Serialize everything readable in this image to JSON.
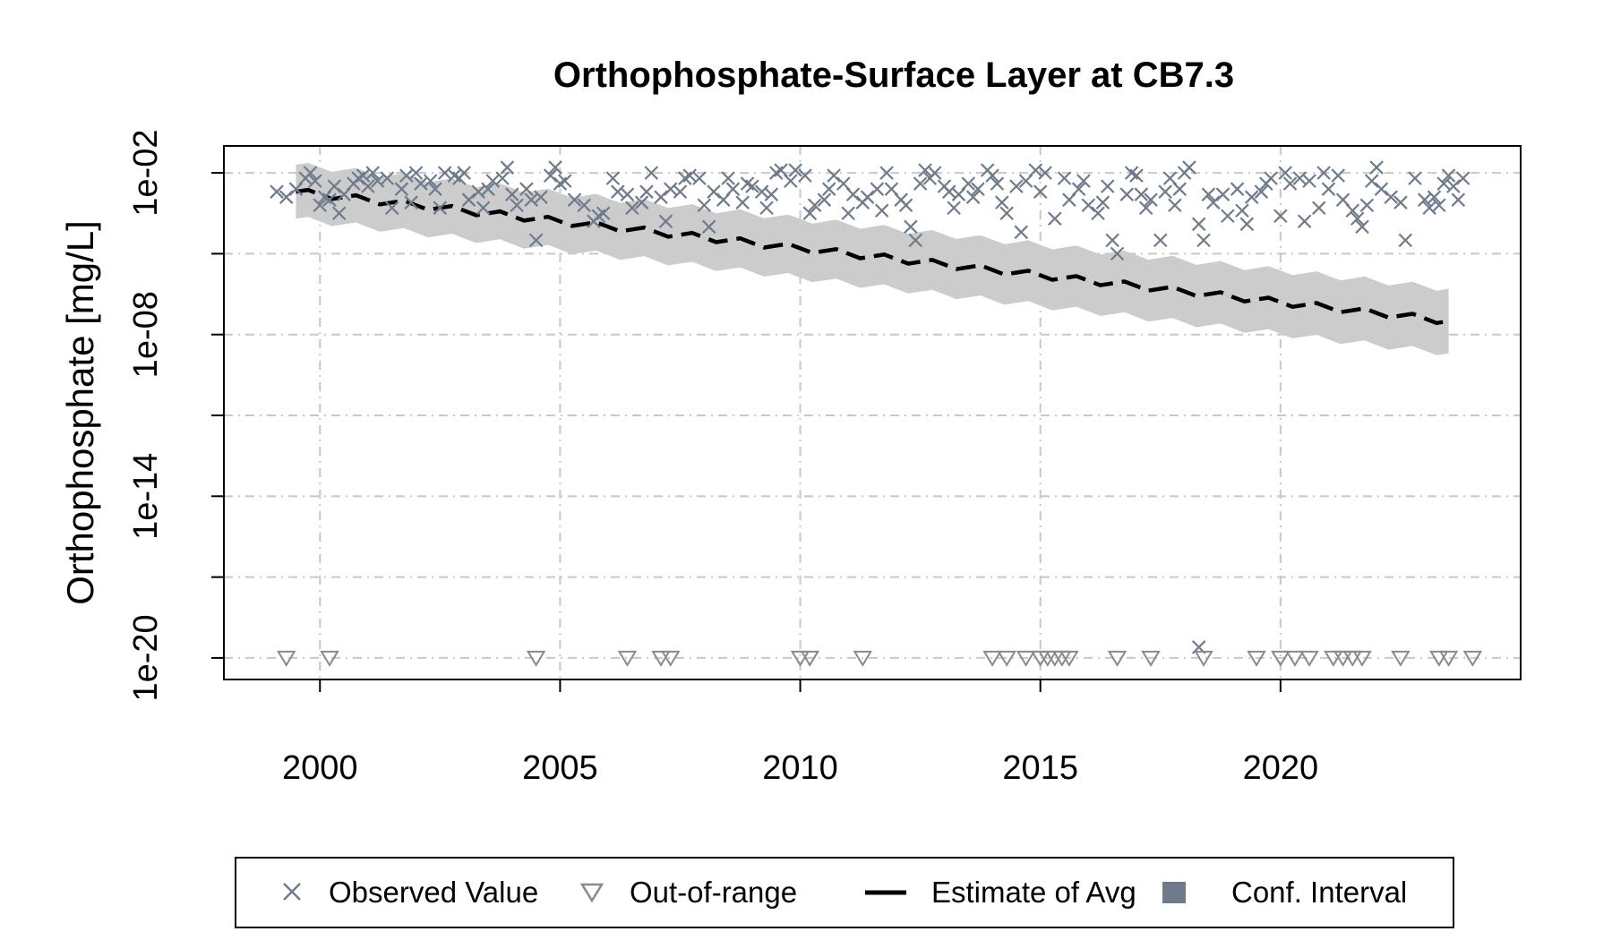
{
  "chart_data": {
    "type": "scatter",
    "title": "Orthophosphate-Surface Layer at CB7.3",
    "xlabel": "",
    "ylabel": "Orthophosphate [mg/L]",
    "xlim": [
      1998,
      2025
    ],
    "ylim_log10": [
      -20.8,
      -1
    ],
    "y_scale": "log10",
    "x_ticks": [
      2000,
      2005,
      2010,
      2015,
      2020
    ],
    "x_tick_labels": [
      "2000",
      "2005",
      "2010",
      "2015",
      "2020"
    ],
    "y_ticks_log10": [
      -2,
      -5,
      -8,
      -11,
      -14,
      -17,
      -20
    ],
    "y_tick_labels": [
      {
        "exp": -2,
        "label": "1e-02"
      },
      {
        "exp": -8,
        "label": "1e-08"
      },
      {
        "exp": -14,
        "label": "1e-14"
      },
      {
        "exp": -20,
        "label": "1e-20"
      }
    ],
    "grid": true,
    "legend_position": "bottom",
    "colors": {
      "observed": "#6e7b8b",
      "out_of_range": "#8a8a8a",
      "estimate": "#000000",
      "ci_band": "#cccccc",
      "ci_legend": "#6e7b8b",
      "grid": "#c8c8c8"
    },
    "series": [
      {
        "name": "Observed Value",
        "marker": "x",
        "points": [
          [
            1999.1,
            -2.7
          ],
          [
            1999.3,
            -2.9
          ],
          [
            1999.5,
            -2.6
          ],
          [
            1999.7,
            -2.2
          ],
          [
            1999.8,
            -2.0
          ],
          [
            1999.9,
            -2.3
          ],
          [
            2000.0,
            -3.2
          ],
          [
            2000.1,
            -2.9
          ],
          [
            2000.2,
            -3.0
          ],
          [
            2000.3,
            -2.5
          ],
          [
            2000.4,
            -3.5
          ],
          [
            2000.5,
            -2.8
          ],
          [
            2000.7,
            -2.4
          ],
          [
            2000.8,
            -2.2
          ],
          [
            2000.9,
            -2.1
          ],
          [
            2001.0,
            -2.5
          ],
          [
            2001.1,
            -2.0
          ],
          [
            2001.2,
            -2.3
          ],
          [
            2001.4,
            -2.2
          ],
          [
            2001.5,
            -3.3
          ],
          [
            2001.7,
            -2.6
          ],
          [
            2001.8,
            -2.1
          ],
          [
            2001.9,
            -3.1
          ],
          [
            2002.0,
            -2.0
          ],
          [
            2002.1,
            -2.4
          ],
          [
            2002.3,
            -2.3
          ],
          [
            2002.4,
            -2.6
          ],
          [
            2002.5,
            -3.3
          ],
          [
            2002.6,
            -2.0
          ],
          [
            2002.8,
            -2.1
          ],
          [
            2002.9,
            -2.2
          ],
          [
            2003.0,
            -2.0
          ],
          [
            2003.1,
            -3.0
          ],
          [
            2003.3,
            -2.7
          ],
          [
            2003.4,
            -3.3
          ],
          [
            2003.5,
            -2.6
          ],
          [
            2003.6,
            -2.3
          ],
          [
            2003.8,
            -2.2
          ],
          [
            2003.9,
            -1.8
          ],
          [
            2004.0,
            -2.8
          ],
          [
            2004.1,
            -3.2
          ],
          [
            2004.3,
            -2.6
          ],
          [
            2004.4,
            -3.0
          ],
          [
            2004.5,
            -4.5
          ],
          [
            2004.6,
            -2.9
          ],
          [
            2004.8,
            -2.1
          ],
          [
            2004.9,
            -1.8
          ],
          [
            2005.0,
            -2.4
          ],
          [
            2005.1,
            -2.3
          ],
          [
            2005.3,
            -3.0
          ],
          [
            2005.5,
            -3.2
          ],
          [
            2005.7,
            -3.8
          ],
          [
            2005.8,
            -3.6
          ],
          [
            2005.9,
            -3.5
          ],
          [
            2006.1,
            -2.2
          ],
          [
            2006.2,
            -2.7
          ],
          [
            2006.4,
            -2.8
          ],
          [
            2006.5,
            -3.3
          ],
          [
            2006.7,
            -3.1
          ],
          [
            2006.8,
            -2.7
          ],
          [
            2006.9,
            -2.0
          ],
          [
            2007.1,
            -2.9
          ],
          [
            2007.2,
            -3.8
          ],
          [
            2007.3,
            -2.6
          ],
          [
            2007.5,
            -2.7
          ],
          [
            2007.6,
            -2.2
          ],
          [
            2007.7,
            -2.1
          ],
          [
            2007.9,
            -2.2
          ],
          [
            2008.0,
            -3.2
          ],
          [
            2008.1,
            -4.0
          ],
          [
            2008.2,
            -2.7
          ],
          [
            2008.4,
            -3.0
          ],
          [
            2008.5,
            -2.2
          ],
          [
            2008.6,
            -2.6
          ],
          [
            2008.8,
            -3.1
          ],
          [
            2008.9,
            -2.4
          ],
          [
            2009.0,
            -2.5
          ],
          [
            2009.2,
            -2.7
          ],
          [
            2009.3,
            -3.3
          ],
          [
            2009.4,
            -2.8
          ],
          [
            2009.5,
            -2.0
          ],
          [
            2009.6,
            -1.9
          ],
          [
            2009.8,
            -2.3
          ],
          [
            2009.9,
            -1.9
          ],
          [
            2010.1,
            -2.1
          ],
          [
            2010.2,
            -3.5
          ],
          [
            2010.3,
            -3.2
          ],
          [
            2010.5,
            -3.0
          ],
          [
            2010.6,
            -2.6
          ],
          [
            2010.7,
            -2.1
          ],
          [
            2010.9,
            -2.4
          ],
          [
            2011.0,
            -3.5
          ],
          [
            2011.1,
            -2.8
          ],
          [
            2011.3,
            -3.1
          ],
          [
            2011.4,
            -2.9
          ],
          [
            2011.6,
            -2.6
          ],
          [
            2011.7,
            -3.4
          ],
          [
            2011.8,
            -2.0
          ],
          [
            2011.9,
            -2.6
          ],
          [
            2012.1,
            -3.0
          ],
          [
            2012.2,
            -3.2
          ],
          [
            2012.3,
            -4.0
          ],
          [
            2012.4,
            -4.5
          ],
          [
            2012.5,
            -2.4
          ],
          [
            2012.6,
            -1.9
          ],
          [
            2012.7,
            -2.2
          ],
          [
            2012.8,
            -2.0
          ],
          [
            2013.0,
            -2.5
          ],
          [
            2013.1,
            -2.7
          ],
          [
            2013.2,
            -3.3
          ],
          [
            2013.3,
            -2.8
          ],
          [
            2013.5,
            -2.4
          ],
          [
            2013.6,
            -2.9
          ],
          [
            2013.7,
            -2.6
          ],
          [
            2013.9,
            -1.9
          ],
          [
            2014.0,
            -2.1
          ],
          [
            2014.1,
            -2.4
          ],
          [
            2014.2,
            -3.1
          ],
          [
            2014.3,
            -3.5
          ],
          [
            2014.5,
            -2.5
          ],
          [
            2014.6,
            -4.2
          ],
          [
            2014.7,
            -2.3
          ],
          [
            2014.9,
            -1.9
          ],
          [
            2015.0,
            -2.7
          ],
          [
            2015.1,
            -2.0
          ],
          [
            2015.3,
            -3.7
          ],
          [
            2015.5,
            -2.2
          ],
          [
            2015.6,
            -3.0
          ],
          [
            2015.8,
            -2.6
          ],
          [
            2015.9,
            -2.3
          ],
          [
            2016.0,
            -3.2
          ],
          [
            2016.2,
            -3.5
          ],
          [
            2016.3,
            -3.1
          ],
          [
            2016.4,
            -2.5
          ],
          [
            2016.5,
            -4.5
          ],
          [
            2016.6,
            -5.0
          ],
          [
            2016.8,
            -2.8
          ],
          [
            2016.9,
            -2.0
          ],
          [
            2017.0,
            -2.1
          ],
          [
            2017.1,
            -2.8
          ],
          [
            2017.2,
            -3.3
          ],
          [
            2017.3,
            -3.0
          ],
          [
            2017.5,
            -4.5
          ],
          [
            2017.6,
            -2.7
          ],
          [
            2017.7,
            -2.2
          ],
          [
            2017.8,
            -3.2
          ],
          [
            2017.9,
            -2.6
          ],
          [
            2018.0,
            -2.0
          ],
          [
            2018.1,
            -1.8
          ],
          [
            2018.3,
            -3.9
          ],
          [
            2018.4,
            -4.5
          ],
          [
            2018.5,
            -2.8
          ],
          [
            2018.6,
            -3.1
          ],
          [
            2018.8,
            -2.8
          ],
          [
            2018.9,
            -3.6
          ],
          [
            2019.1,
            -2.6
          ],
          [
            2019.2,
            -3.4
          ],
          [
            2019.3,
            -3.9
          ],
          [
            2019.4,
            -2.9
          ],
          [
            2019.6,
            -2.7
          ],
          [
            2019.7,
            -2.4
          ],
          [
            2019.8,
            -2.2
          ],
          [
            2020.0,
            -3.6
          ],
          [
            2020.1,
            -2.0
          ],
          [
            2020.2,
            -2.4
          ],
          [
            2020.4,
            -2.2
          ],
          [
            2020.5,
            -3.8
          ],
          [
            2020.6,
            -2.3
          ],
          [
            2020.8,
            -3.3
          ],
          [
            2020.9,
            -2.0
          ],
          [
            2021.0,
            -2.6
          ],
          [
            2021.2,
            -2.1
          ],
          [
            2021.3,
            -3.0
          ],
          [
            2021.5,
            -3.4
          ],
          [
            2021.6,
            -3.7
          ],
          [
            2021.7,
            -4.0
          ],
          [
            2021.8,
            -3.2
          ],
          [
            2021.9,
            -2.3
          ],
          [
            2022.0,
            -1.8
          ],
          [
            2022.1,
            -2.6
          ],
          [
            2022.3,
            -2.9
          ],
          [
            2022.5,
            -3.1
          ],
          [
            2022.6,
            -4.5
          ],
          [
            2022.8,
            -2.2
          ],
          [
            2023.0,
            -3.0
          ],
          [
            2023.1,
            -3.3
          ],
          [
            2023.2,
            -2.9
          ],
          [
            2023.3,
            -3.2
          ],
          [
            2023.4,
            -2.4
          ],
          [
            2023.5,
            -2.1
          ],
          [
            2023.6,
            -2.5
          ],
          [
            2023.7,
            -3.0
          ],
          [
            2023.8,
            -2.2
          ],
          [
            2018.3,
            -19.6
          ]
        ]
      },
      {
        "name": "Out-of-range",
        "marker": "triangle-down",
        "points": [
          [
            1999.3,
            -20
          ],
          [
            2000.2,
            -20
          ],
          [
            2004.5,
            -20
          ],
          [
            2006.4,
            -20
          ],
          [
            2007.1,
            -20
          ],
          [
            2007.3,
            -20
          ],
          [
            2010.0,
            -20
          ],
          [
            2010.2,
            -20
          ],
          [
            2011.3,
            -20
          ],
          [
            2014.0,
            -20
          ],
          [
            2014.3,
            -20
          ],
          [
            2014.7,
            -20
          ],
          [
            2015.0,
            -20
          ],
          [
            2015.15,
            -20
          ],
          [
            2015.3,
            -20
          ],
          [
            2015.45,
            -20
          ],
          [
            2015.6,
            -20
          ],
          [
            2016.6,
            -20
          ],
          [
            2017.3,
            -20
          ],
          [
            2018.4,
            -20
          ],
          [
            2019.5,
            -20
          ],
          [
            2020.0,
            -20
          ],
          [
            2020.3,
            -20
          ],
          [
            2020.6,
            -20
          ],
          [
            2021.1,
            -20
          ],
          [
            2021.3,
            -20
          ],
          [
            2021.5,
            -20
          ],
          [
            2021.7,
            -20
          ],
          [
            2022.5,
            -20
          ],
          [
            2023.3,
            -20
          ],
          [
            2023.5,
            -20
          ],
          [
            2024.0,
            -20
          ]
        ]
      },
      {
        "name": "Estimate of Avg",
        "type": "line",
        "x_start": 1999.5,
        "x_end": 2023.5,
        "y_start_log10": -2.7,
        "y_end_log10": -7.5
      },
      {
        "name": "Conf. Interval",
        "type": "band",
        "halfwidth_start_log10": 1.0,
        "halfwidth_end_log10": 1.2
      }
    ],
    "legend": [
      {
        "key": "observed",
        "label": "Observed Value"
      },
      {
        "key": "out_of_range",
        "label": "Out-of-range"
      },
      {
        "key": "estimate",
        "label": "Estimate of Avg"
      },
      {
        "key": "ci",
        "label": "Conf. Interval"
      }
    ]
  }
}
